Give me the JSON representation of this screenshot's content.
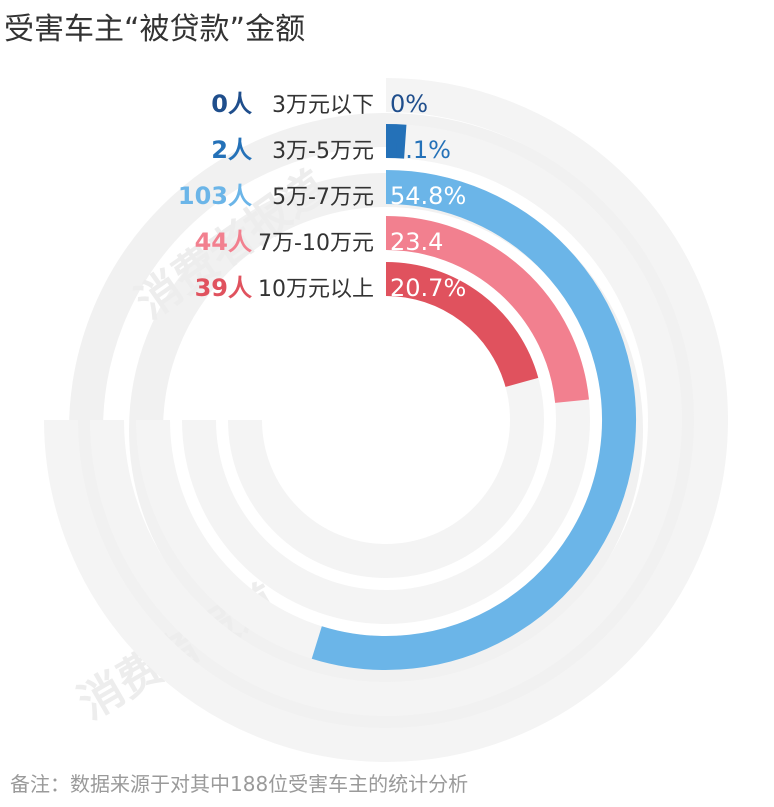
{
  "title": "受害车主“被贷款”金额",
  "footnote": "备注：数据来源于对其中188位受害车主的统计分析",
  "watermark": "消费者报道",
  "chart_data": {
    "type": "radial-bar",
    "title": "受害车主“被贷款”金额",
    "unit": "%",
    "max": 100,
    "series": [
      {
        "count_label": "0人",
        "category": "3万元以下",
        "value": 0,
        "value_label": "0%",
        "color": "#1f4e8c"
      },
      {
        "count_label": "2人",
        "category": "3万-5万元",
        "value": 1.1,
        "value_label": "1.1%",
        "color": "#2471b8"
      },
      {
        "count_label": "103人",
        "category": "5万-7万元",
        "value": 54.8,
        "value_label": "54.8%",
        "color": "#6bb5e8"
      },
      {
        "count_label": "44人",
        "category": "7万-10万元",
        "value": 23.4,
        "value_label": "23.4",
        "color": "#f2808f"
      },
      {
        "count_label": "39人",
        "category": "10万元以上",
        "value": 20.7,
        "value_label": "20.7%",
        "color": "#e0525e"
      }
    ]
  }
}
